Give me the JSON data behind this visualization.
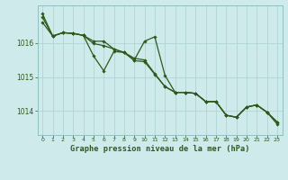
{
  "title": "Graphe pression niveau de la mer (hPa)",
  "bg_color": "#ceeaea",
  "grid_color": "#afd4d4",
  "line_color": "#2d5a1b",
  "text_color": "#2d5a1b",
  "xlim": [
    -0.5,
    23.5
  ],
  "ylim": [
    1013.3,
    1017.1
  ],
  "yticks": [
    1014,
    1015,
    1016
  ],
  "xticks": [
    0,
    1,
    2,
    3,
    4,
    5,
    6,
    7,
    8,
    9,
    10,
    11,
    12,
    13,
    14,
    15,
    16,
    17,
    18,
    19,
    20,
    21,
    22,
    23
  ],
  "series1": [
    1016.85,
    1016.2,
    1016.3,
    1016.28,
    1016.22,
    1016.05,
    1016.05,
    1015.82,
    1015.72,
    1015.55,
    1015.5,
    1015.1,
    1014.72,
    1014.55,
    1014.55,
    1014.52,
    1014.28,
    1014.28,
    1013.88,
    1013.82,
    1014.12,
    1014.18,
    1013.97,
    1013.68
  ],
  "series2": [
    1016.75,
    1016.2,
    1016.3,
    1016.28,
    1016.22,
    1015.62,
    1015.18,
    1015.75,
    1015.72,
    1015.5,
    1016.05,
    1016.18,
    1015.05,
    1014.55,
    1014.55,
    1014.52,
    1014.28,
    1014.28,
    1013.88,
    1013.82,
    1014.12,
    1014.18,
    1013.97,
    1013.62
  ],
  "series3": [
    1016.6,
    1016.2,
    1016.3,
    1016.28,
    1016.22,
    1015.98,
    1015.92,
    1015.82,
    1015.72,
    1015.48,
    1015.45,
    1015.08,
    1014.72,
    1014.55,
    1014.55,
    1014.52,
    1014.28,
    1014.28,
    1013.88,
    1013.82,
    1014.12,
    1014.18,
    1013.97,
    1013.68
  ]
}
